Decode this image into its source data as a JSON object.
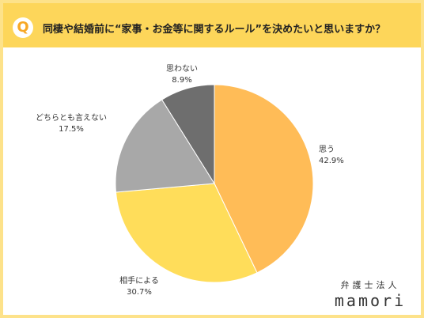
{
  "header": {
    "badge": "Q",
    "question": "同棲や結婚前に“家事・お金等に関するルール”を決めたいと思いますか？"
  },
  "brand": {
    "top": "弁護士法人",
    "name": "mamori"
  },
  "colors": {
    "header_bg": "#fdd65a",
    "frame": "#fde28a"
  },
  "chart_data": {
    "type": "pie",
    "slices": [
      {
        "label": "思う",
        "value": 42.9,
        "value_label": "42.9%",
        "color": "#ffbc57"
      },
      {
        "label": "相手による",
        "value": 30.7,
        "value_label": "30.7%",
        "color": "#ffdd5a"
      },
      {
        "label": "どちらとも言えない",
        "value": 17.5,
        "value_label": "17.5%",
        "color": "#a8a8a8"
      },
      {
        "label": "思わない",
        "value": 8.9,
        "value_label": "8.9%",
        "color": "#6e6e6e"
      }
    ],
    "start_angle": "12 o'clock",
    "direction": "clockwise"
  }
}
